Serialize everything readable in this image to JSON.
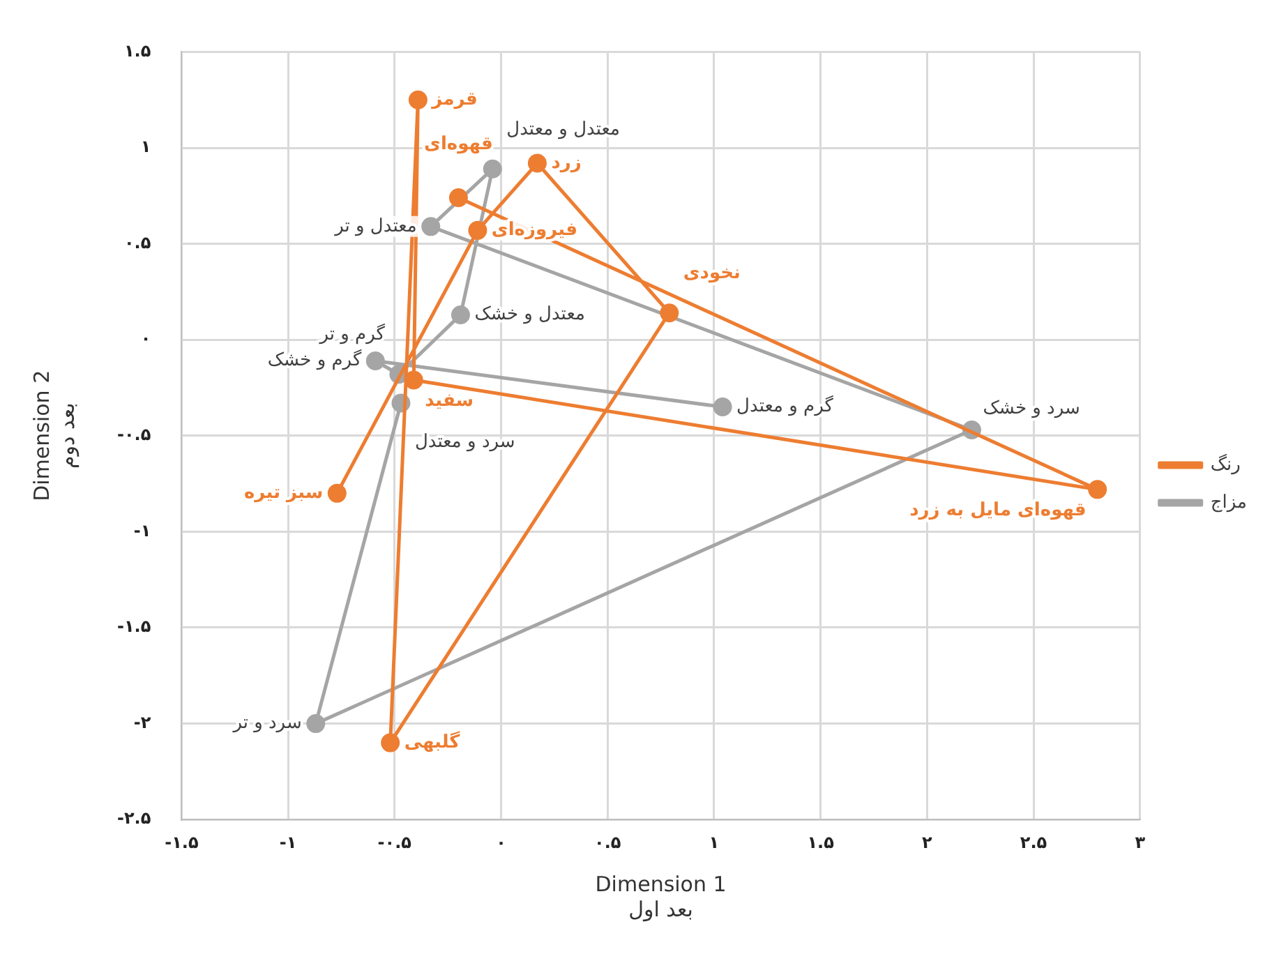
{
  "chart_data": {
    "type": "line",
    "xlabel": "Dimension 1\nبعد اول",
    "ylabel": "Dimension 2\nبعد دوم",
    "xlim": [
      -1.5,
      3
    ],
    "ylim": [
      -2.5,
      1.5
    ],
    "xticks": [
      {
        "value": -1.5,
        "label": "-۱.۵"
      },
      {
        "value": -1,
        "label": "-۱"
      },
      {
        "value": -0.5,
        "label": "-۰.۵"
      },
      {
        "value": 0,
        "label": "۰"
      },
      {
        "value": 0.5,
        "label": "۰.۵"
      },
      {
        "value": 1,
        "label": "۱"
      },
      {
        "value": 1.5,
        "label": "۱.۵"
      },
      {
        "value": 2,
        "label": "۲"
      },
      {
        "value": 2.5,
        "label": "۲.۵"
      },
      {
        "value": 3,
        "label": "۳"
      }
    ],
    "yticks": [
      {
        "value": -2.5,
        "label": "-۲.۵"
      },
      {
        "value": -2,
        "label": "-۲"
      },
      {
        "value": -1.5,
        "label": "-۱.۵"
      },
      {
        "value": -1,
        "label": "-۱"
      },
      {
        "value": -0.5,
        "label": "-۰.۵"
      },
      {
        "value": 0,
        "label": "۰"
      },
      {
        "value": 0.5,
        "label": "۰.۵"
      },
      {
        "value": 1,
        "label": "۱"
      },
      {
        "value": 1.5,
        "label": "۱.۵"
      }
    ],
    "grid": true,
    "legend": "right",
    "marker": "circle",
    "line_style": "solid",
    "series": [
      {
        "name": "رنگ",
        "color": "#ed7d31",
        "x": [
          -0.77,
          -0.11,
          0.17,
          0.79,
          -0.52,
          -0.39,
          -0.41,
          2.8,
          -0.2
        ],
        "values": [
          -0.8,
          0.57,
          0.92,
          0.14,
          -2.1,
          1.25,
          -0.21,
          -0.78,
          0.74
        ]
      },
      {
        "name": "مزاج",
        "color": "#a5a5a5",
        "x": [
          1.04,
          -0.59,
          -0.48,
          -0.19,
          -0.04,
          -0.33,
          2.21,
          -0.87,
          -0.47
        ],
        "values": [
          -0.35,
          -0.11,
          -0.18,
          0.13,
          0.89,
          0.59,
          -0.47,
          -2.0,
          -0.33
        ]
      }
    ],
    "annotations": [
      {
        "text": "سبز تیره",
        "x": -0.77,
        "y": -0.8
      },
      {
        "text": "فیروزه‌ای",
        "x": -0.11,
        "y": 0.57
      },
      {
        "text": "زرد",
        "x": 0.17,
        "y": 0.92
      },
      {
        "text": "نخودی",
        "x": 0.79,
        "y": 0.14
      },
      {
        "text": "گلبهی",
        "x": -0.52,
        "y": -2.1
      },
      {
        "text": "قرمز",
        "x": -0.39,
        "y": 1.25
      },
      {
        "text": "سفید",
        "x": -0.41,
        "y": -0.21
      },
      {
        "text": "قهوه‌ای مایل به زرد",
        "x": 2.8,
        "y": -0.78
      },
      {
        "text": "قهوه‌ای",
        "x": -0.2,
        "y": 0.74
      },
      {
        "text": "گرم و معتدل",
        "x": 1.04,
        "y": -0.35
      },
      {
        "text": "گرم و خشک",
        "x": -0.59,
        "y": -0.11
      },
      {
        "text": "گرم و تر",
        "x": -0.48,
        "y": -0.18
      },
      {
        "text": "معتدل و خشک",
        "x": -0.19,
        "y": 0.13
      },
      {
        "text": "معتدل و معتدل",
        "x": -0.04,
        "y": 0.89
      },
      {
        "text": "معتدل و تر",
        "x": -0.33,
        "y": 0.59
      },
      {
        "text": "سرد و خشک",
        "x": 2.21,
        "y": -0.47
      },
      {
        "text": "سرد و تر",
        "x": -0.87,
        "y": -2.0
      },
      {
        "text": "سرد و معتدل",
        "x": -0.47,
        "y": -0.33
      }
    ]
  }
}
